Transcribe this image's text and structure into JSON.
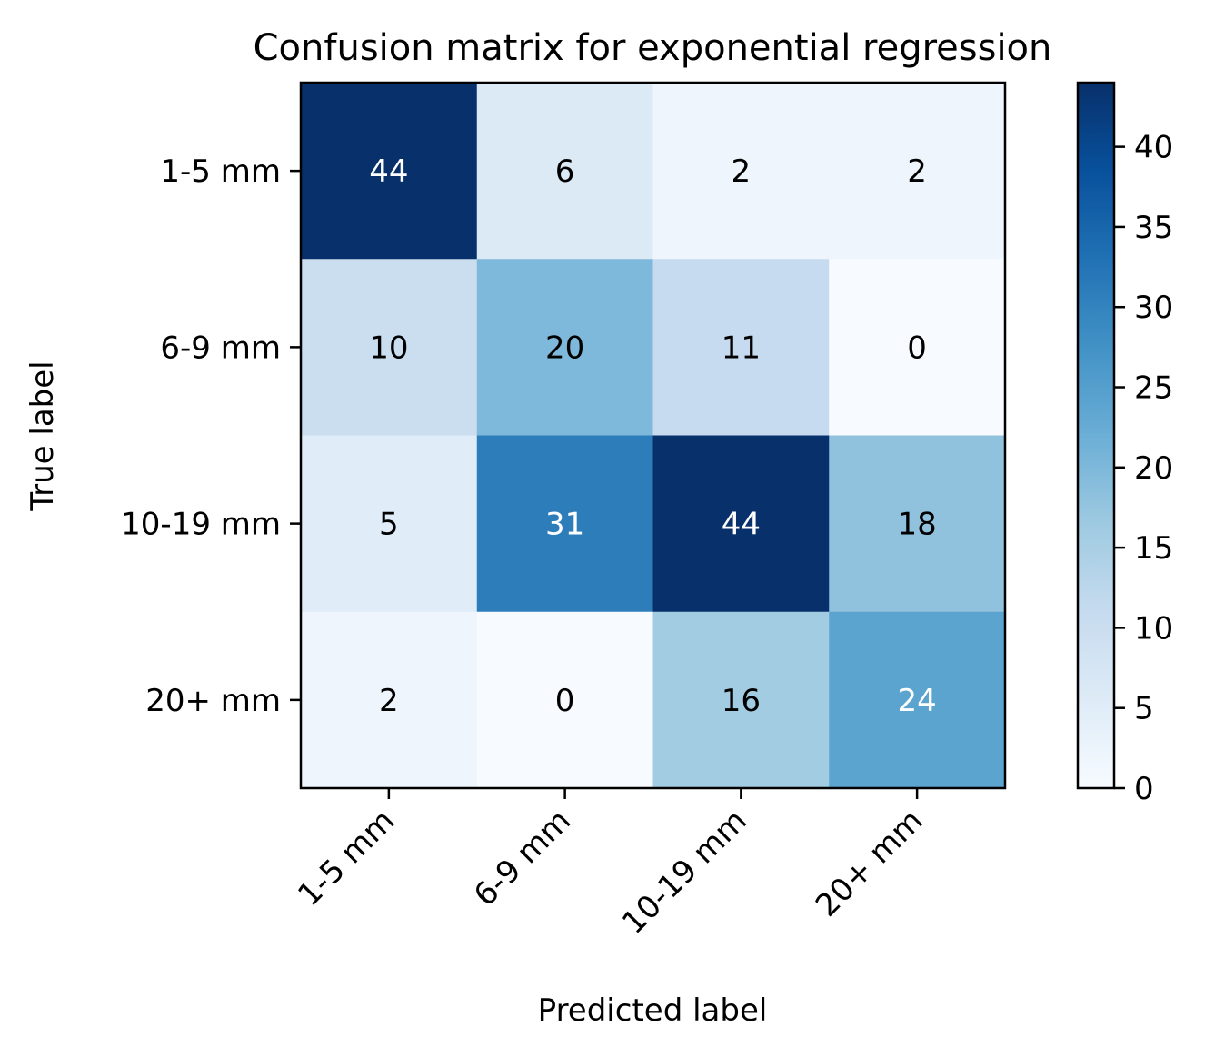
{
  "chart_data": {
    "type": "heatmap",
    "title": "Confusion matrix for exponential regression",
    "xlabel": "Predicted label",
    "ylabel": "True label",
    "x_categories": [
      "1-5 mm",
      "6-9 mm",
      "10-19 mm",
      "20+ mm"
    ],
    "y_categories": [
      "1-5 mm",
      "6-9 mm",
      "10-19 mm",
      "20+ mm"
    ],
    "values": [
      [
        44,
        6,
        2,
        2
      ],
      [
        10,
        20,
        11,
        0
      ],
      [
        5,
        31,
        44,
        18
      ],
      [
        2,
        0,
        16,
        24
      ]
    ],
    "colormap": "Blues",
    "colorbar": {
      "range": [
        0,
        44
      ],
      "ticks": [
        0,
        5,
        10,
        15,
        20,
        25,
        30,
        35,
        40
      ]
    },
    "text_colors": {
      "dark_cell": "#ffffff",
      "light_cell": "#000000"
    }
  }
}
